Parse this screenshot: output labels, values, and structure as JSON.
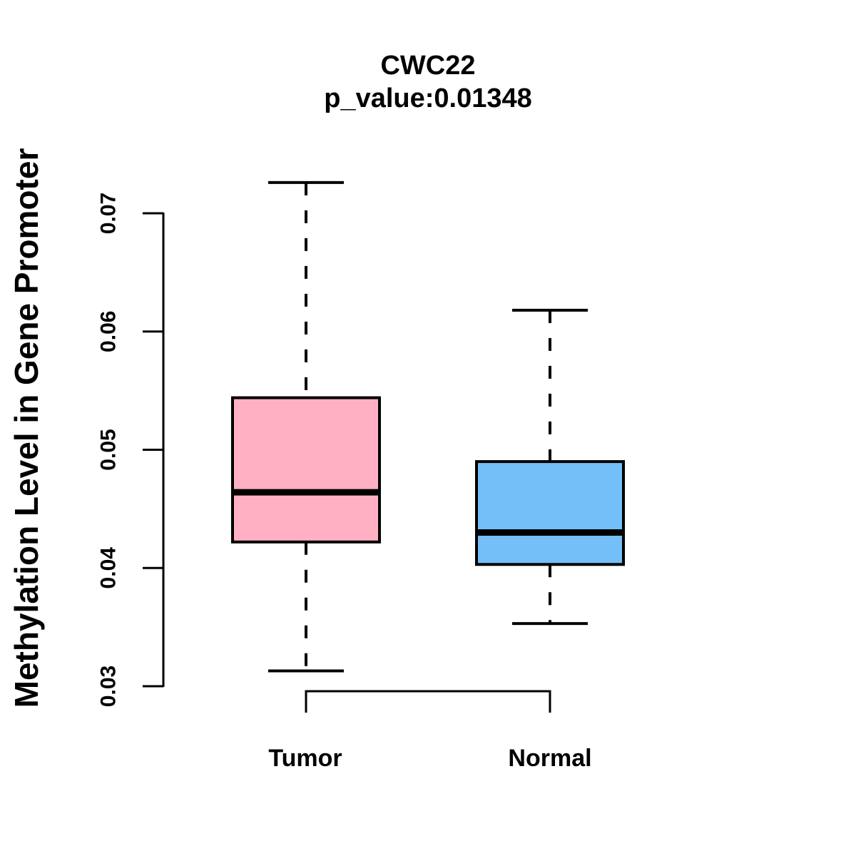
{
  "colors": {
    "background": "#FFFFFF",
    "text": "#000000",
    "box_border": "#000000",
    "tumor_fill": "#FFB1C3",
    "normal_fill": "#74BFF7"
  },
  "chart_data": {
    "type": "boxplot",
    "title": "CWC22",
    "subtitle": "p_value:0.01348",
    "p_value": 0.01348,
    "ylabel": "Methylation Level in Gene Promoter",
    "xlabel": "",
    "ytick_values": [
      0.03,
      0.04,
      0.05,
      0.06,
      0.07
    ],
    "ylim": [
      0.03,
      0.07
    ],
    "grid": false,
    "legend": "none",
    "outliers": [],
    "categories": [
      "Tumor",
      "Normal"
    ],
    "groups": [
      {
        "label": "Tumor",
        "fill_color": "#FFB1C3",
        "whisker_low": 0.0313,
        "q1": 0.0422,
        "median": 0.0464,
        "q3": 0.0544,
        "whisker_high": 0.0726
      },
      {
        "label": "Normal",
        "fill_color": "#74BFF7",
        "whisker_low": 0.0353,
        "q1": 0.0403,
        "median": 0.043,
        "q3": 0.049,
        "whisker_high": 0.0618
      }
    ]
  }
}
